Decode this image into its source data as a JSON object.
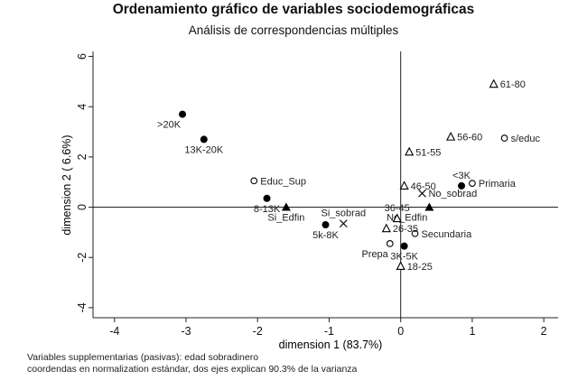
{
  "chart_data": {
    "type": "scatter",
    "title": "Ordenamiento gráfico de variables sociodemográficas",
    "subtitle": "Análisis de correspondencias múltiples",
    "xlabel": "dimension 1 (83.7%)",
    "ylabel": "dimension 2 ( 6.6%)",
    "xlim": [
      -4.3,
      2.2
    ],
    "ylim": [
      -4.4,
      6.2
    ],
    "xticks": [
      -4,
      -3,
      -2,
      -1,
      0,
      1,
      2
    ],
    "yticks": [
      -4,
      -2,
      0,
      2,
      4,
      6
    ],
    "grid": false,
    "reference_lines": {
      "x": 0,
      "y": 0
    },
    "marker_styles": {
      "filled-circle": "ingreso",
      "hollow-circle": "educación",
      "filled-triangle": "edificio",
      "hollow-triangle": "edad",
      "cross": "sobradinero"
    },
    "points": [
      {
        "label": ">20K",
        "x": -3.05,
        "y": 3.7,
        "marker": "filled-circle",
        "label_pos": "below-left"
      },
      {
        "label": "13K-20K",
        "x": -2.75,
        "y": 2.7,
        "marker": "filled-circle",
        "label_pos": "below"
      },
      {
        "label": "8-13K",
        "x": -1.87,
        "y": 0.35,
        "marker": "filled-circle",
        "label_pos": "below"
      },
      {
        "label": "5k-8K",
        "x": -1.05,
        "y": -0.7,
        "marker": "filled-circle",
        "label_pos": "below"
      },
      {
        "label": "3K-5K",
        "x": 0.05,
        "y": -1.55,
        "marker": "filled-circle",
        "label_pos": "below"
      },
      {
        "label": "<3K",
        "x": 0.85,
        "y": 0.85,
        "marker": "filled-circle",
        "label_pos": "above"
      },
      {
        "label": "Educ_Sup",
        "x": -2.05,
        "y": 1.05,
        "marker": "hollow-circle",
        "label_pos": "right"
      },
      {
        "label": "Prepa",
        "x": -0.15,
        "y": -1.45,
        "marker": "hollow-circle",
        "label_pos": "below-left"
      },
      {
        "label": "Secundaria",
        "x": 0.2,
        "y": -1.05,
        "marker": "hollow-circle",
        "label_pos": "right"
      },
      {
        "label": "Primaria",
        "x": 1.0,
        "y": 0.95,
        "marker": "hollow-circle",
        "label_pos": "right"
      },
      {
        "label": "s/educ",
        "x": 1.45,
        "y": 2.75,
        "marker": "hollow-circle",
        "label_pos": "right"
      },
      {
        "label": "Si_Edfin",
        "x": -1.6,
        "y": 0.0,
        "marker": "filled-triangle",
        "label_pos": "below"
      },
      {
        "label": "No_Edfin",
        "x": 0.4,
        "y": 0.0,
        "marker": "filled-triangle",
        "label_pos": "below-left"
      },
      {
        "label": "61-80",
        "x": 1.3,
        "y": 4.9,
        "marker": "hollow-triangle",
        "label_pos": "right"
      },
      {
        "label": "56-60",
        "x": 0.7,
        "y": 2.8,
        "marker": "hollow-triangle",
        "label_pos": "right"
      },
      {
        "label": "51-55",
        "x": 0.12,
        "y": 2.2,
        "marker": "hollow-triangle",
        "label_pos": "right"
      },
      {
        "label": "46-50",
        "x": 0.05,
        "y": 0.85,
        "marker": "hollow-triangle",
        "label_pos": "right"
      },
      {
        "label": "36-45",
        "x": -0.05,
        "y": -0.45,
        "marker": "hollow-triangle",
        "label_pos": "above"
      },
      {
        "label": "26-35",
        "x": -0.2,
        "y": -0.85,
        "marker": "hollow-triangle",
        "label_pos": "right"
      },
      {
        "label": "18-25",
        "x": 0.0,
        "y": -2.35,
        "marker": "hollow-triangle",
        "label_pos": "right"
      },
      {
        "label": "Si_sobrad",
        "x": -0.8,
        "y": -0.65,
        "marker": "cross",
        "label_pos": "above"
      },
      {
        "label": "No_sobrad",
        "x": 0.3,
        "y": 0.55,
        "marker": "cross",
        "label_pos": "right"
      }
    ]
  },
  "notes": {
    "line1": "Variables supplementarias (pasivas): edad sobradinero",
    "line2": "coordendas en normalization estándar, dos ejes explican 90.3% de la varianza"
  }
}
